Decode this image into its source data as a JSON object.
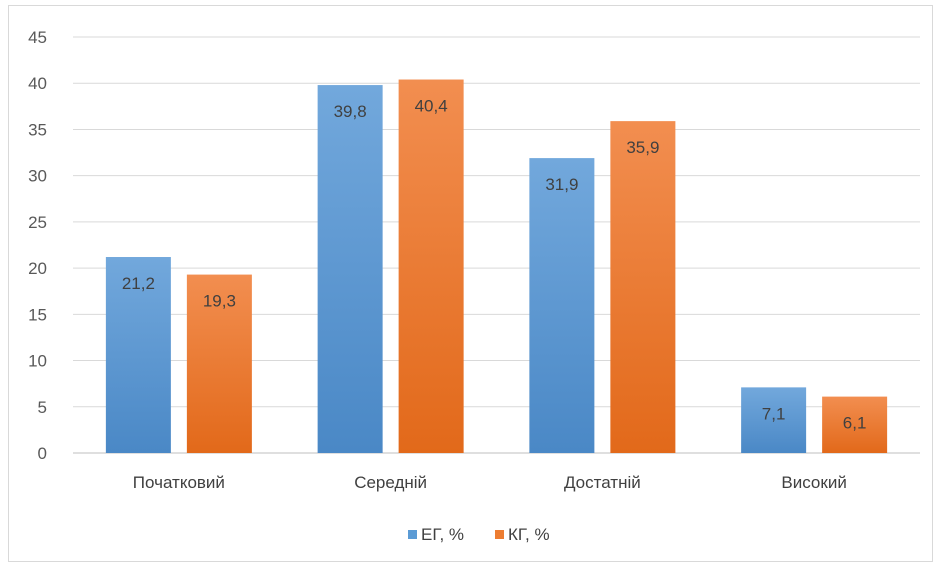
{
  "chart_data": {
    "type": "bar",
    "categories": [
      "Початковий",
      "Середній",
      "Достатній",
      "Високий"
    ],
    "series": [
      {
        "name": "ЕГ, %",
        "values": [
          21.2,
          39.8,
          31.9,
          7.1
        ],
        "value_labels": [
          "21,2",
          "39,8",
          "31,9",
          "7,1"
        ],
        "color": "#5b9bd5"
      },
      {
        "name": "КГ, %",
        "values": [
          19.3,
          40.4,
          35.9,
          6.1
        ],
        "value_labels": [
          "19,3",
          "40,4",
          "35,9",
          "6,1"
        ],
        "color": "#ed7d31"
      }
    ],
    "y_ticks": [
      "0",
      "5",
      "10",
      "15",
      "20",
      "25",
      "30",
      "35",
      "40",
      "45"
    ],
    "ylim": [
      0,
      45
    ],
    "grid": true,
    "legend_position": "bottom"
  }
}
